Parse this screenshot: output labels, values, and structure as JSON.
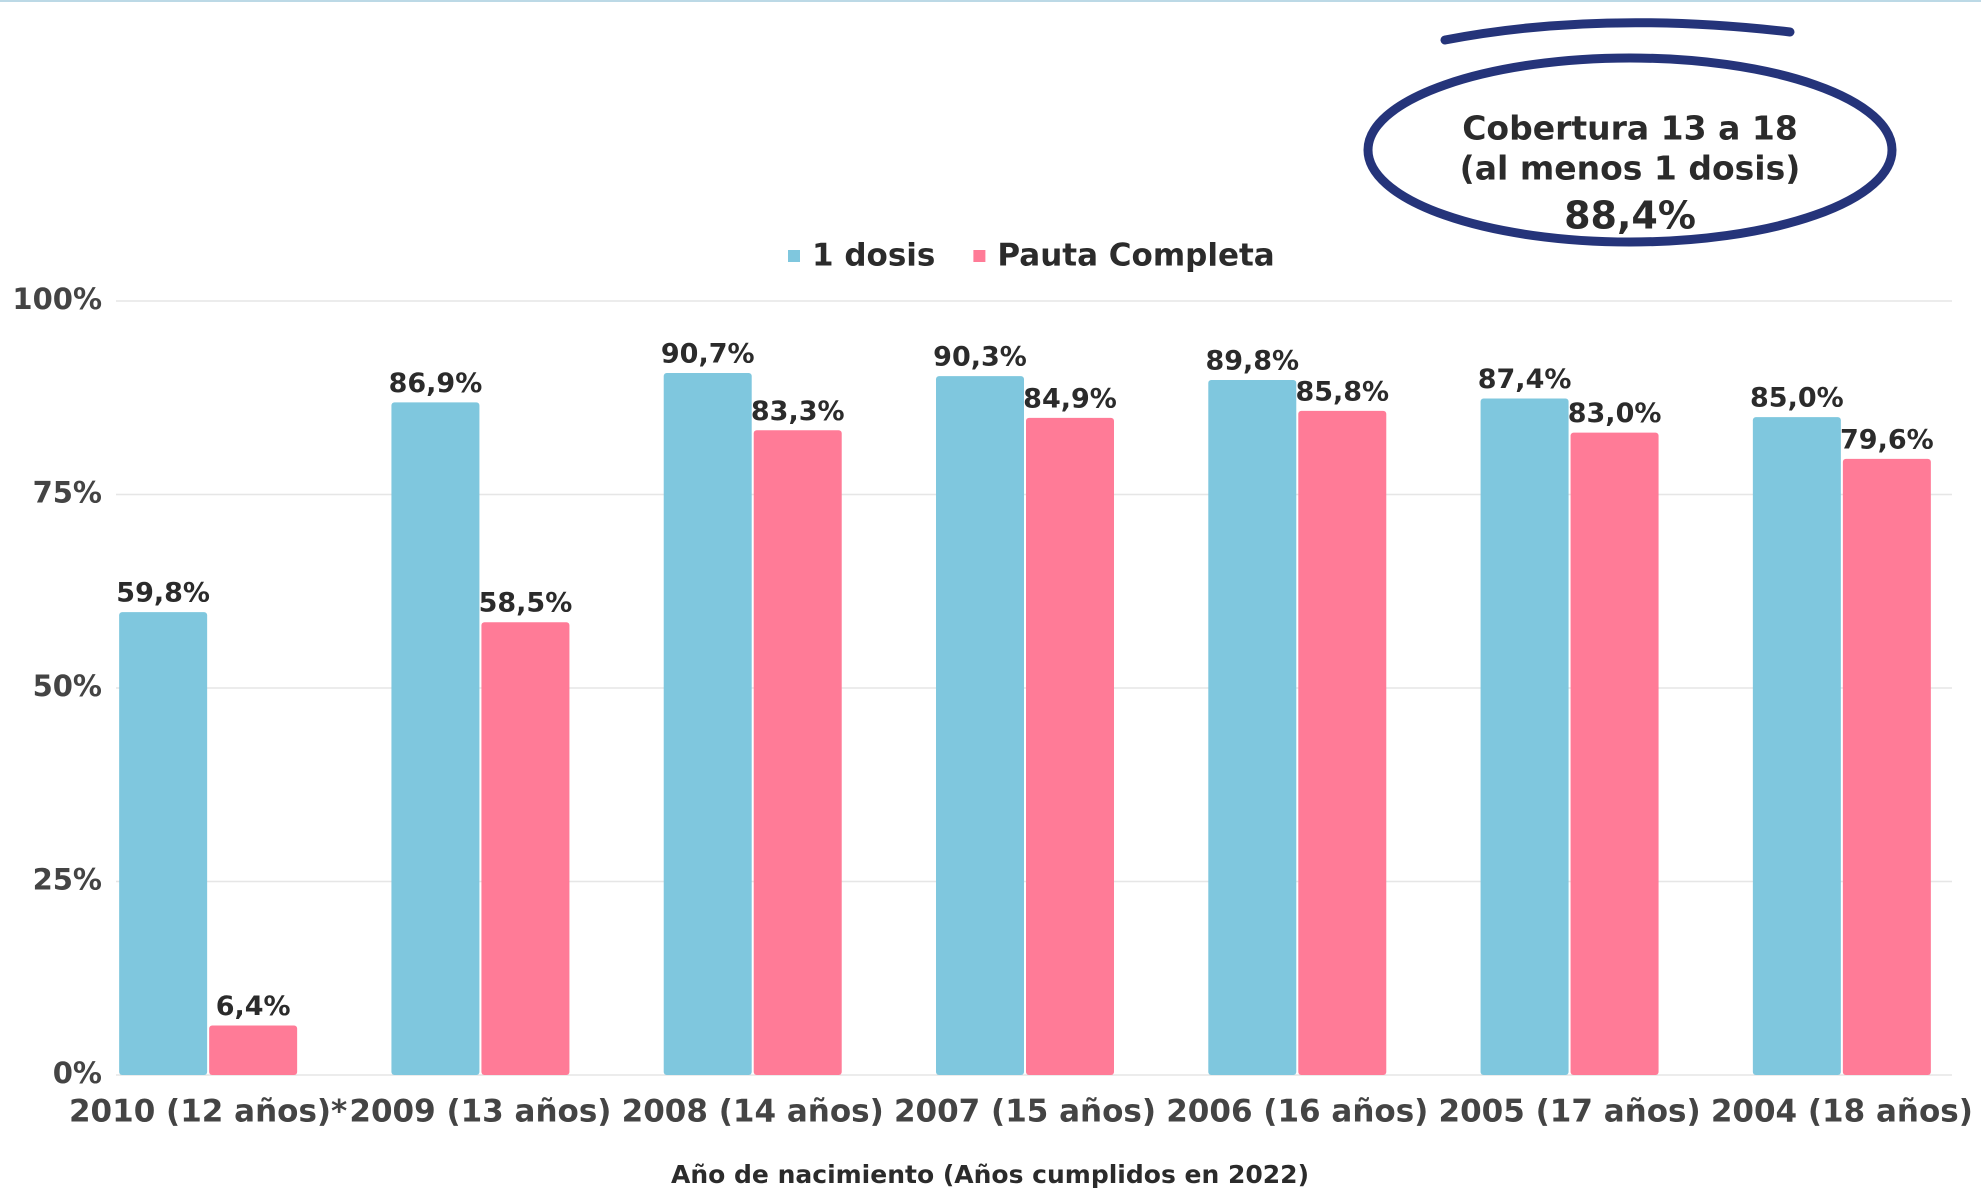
{
  "chart_data": {
    "type": "bar",
    "categories": [
      "2010 (12 años)*",
      "2009 (13 años)",
      "2008 (14 años)",
      "2007 (15 años)",
      "2006 (16 años)",
      "2005 (17 años)",
      "2004 (18 años)"
    ],
    "series": [
      {
        "name": "1 dosis",
        "color": "#7fc7de",
        "values": [
          59.8,
          86.9,
          90.7,
          90.3,
          89.8,
          87.4,
          85.0
        ],
        "value_labels": [
          "59,8%",
          "86,9%",
          "90,7%",
          "90,3%",
          "89,8%",
          "87,4%",
          "85,0%"
        ]
      },
      {
        "name": "Pauta Completa",
        "color": "#ff7b97",
        "values": [
          6.4,
          58.5,
          83.3,
          84.9,
          85.8,
          83.0,
          79.6
        ],
        "value_labels": [
          "6,4%",
          "58,5%",
          "83,3%",
          "84,9%",
          "85,8%",
          "83,0%",
          "79,6%"
        ]
      }
    ],
    "ylim": [
      0,
      100
    ],
    "yticks": [
      {
        "value": 0,
        "label": "0%"
      },
      {
        "value": 25,
        "label": "25%"
      },
      {
        "value": 50,
        "label": "50%"
      },
      {
        "value": 75,
        "label": "75%"
      },
      {
        "value": 100,
        "label": "100%"
      }
    ],
    "grid": true,
    "x_label": "Año de nacimiento  (Años cumplidos en 2022)",
    "annotation": {
      "lines": [
        "Cobertura 13 a 18",
        "(al menos 1 dosis)"
      ],
      "value_text": "88,4%"
    }
  }
}
